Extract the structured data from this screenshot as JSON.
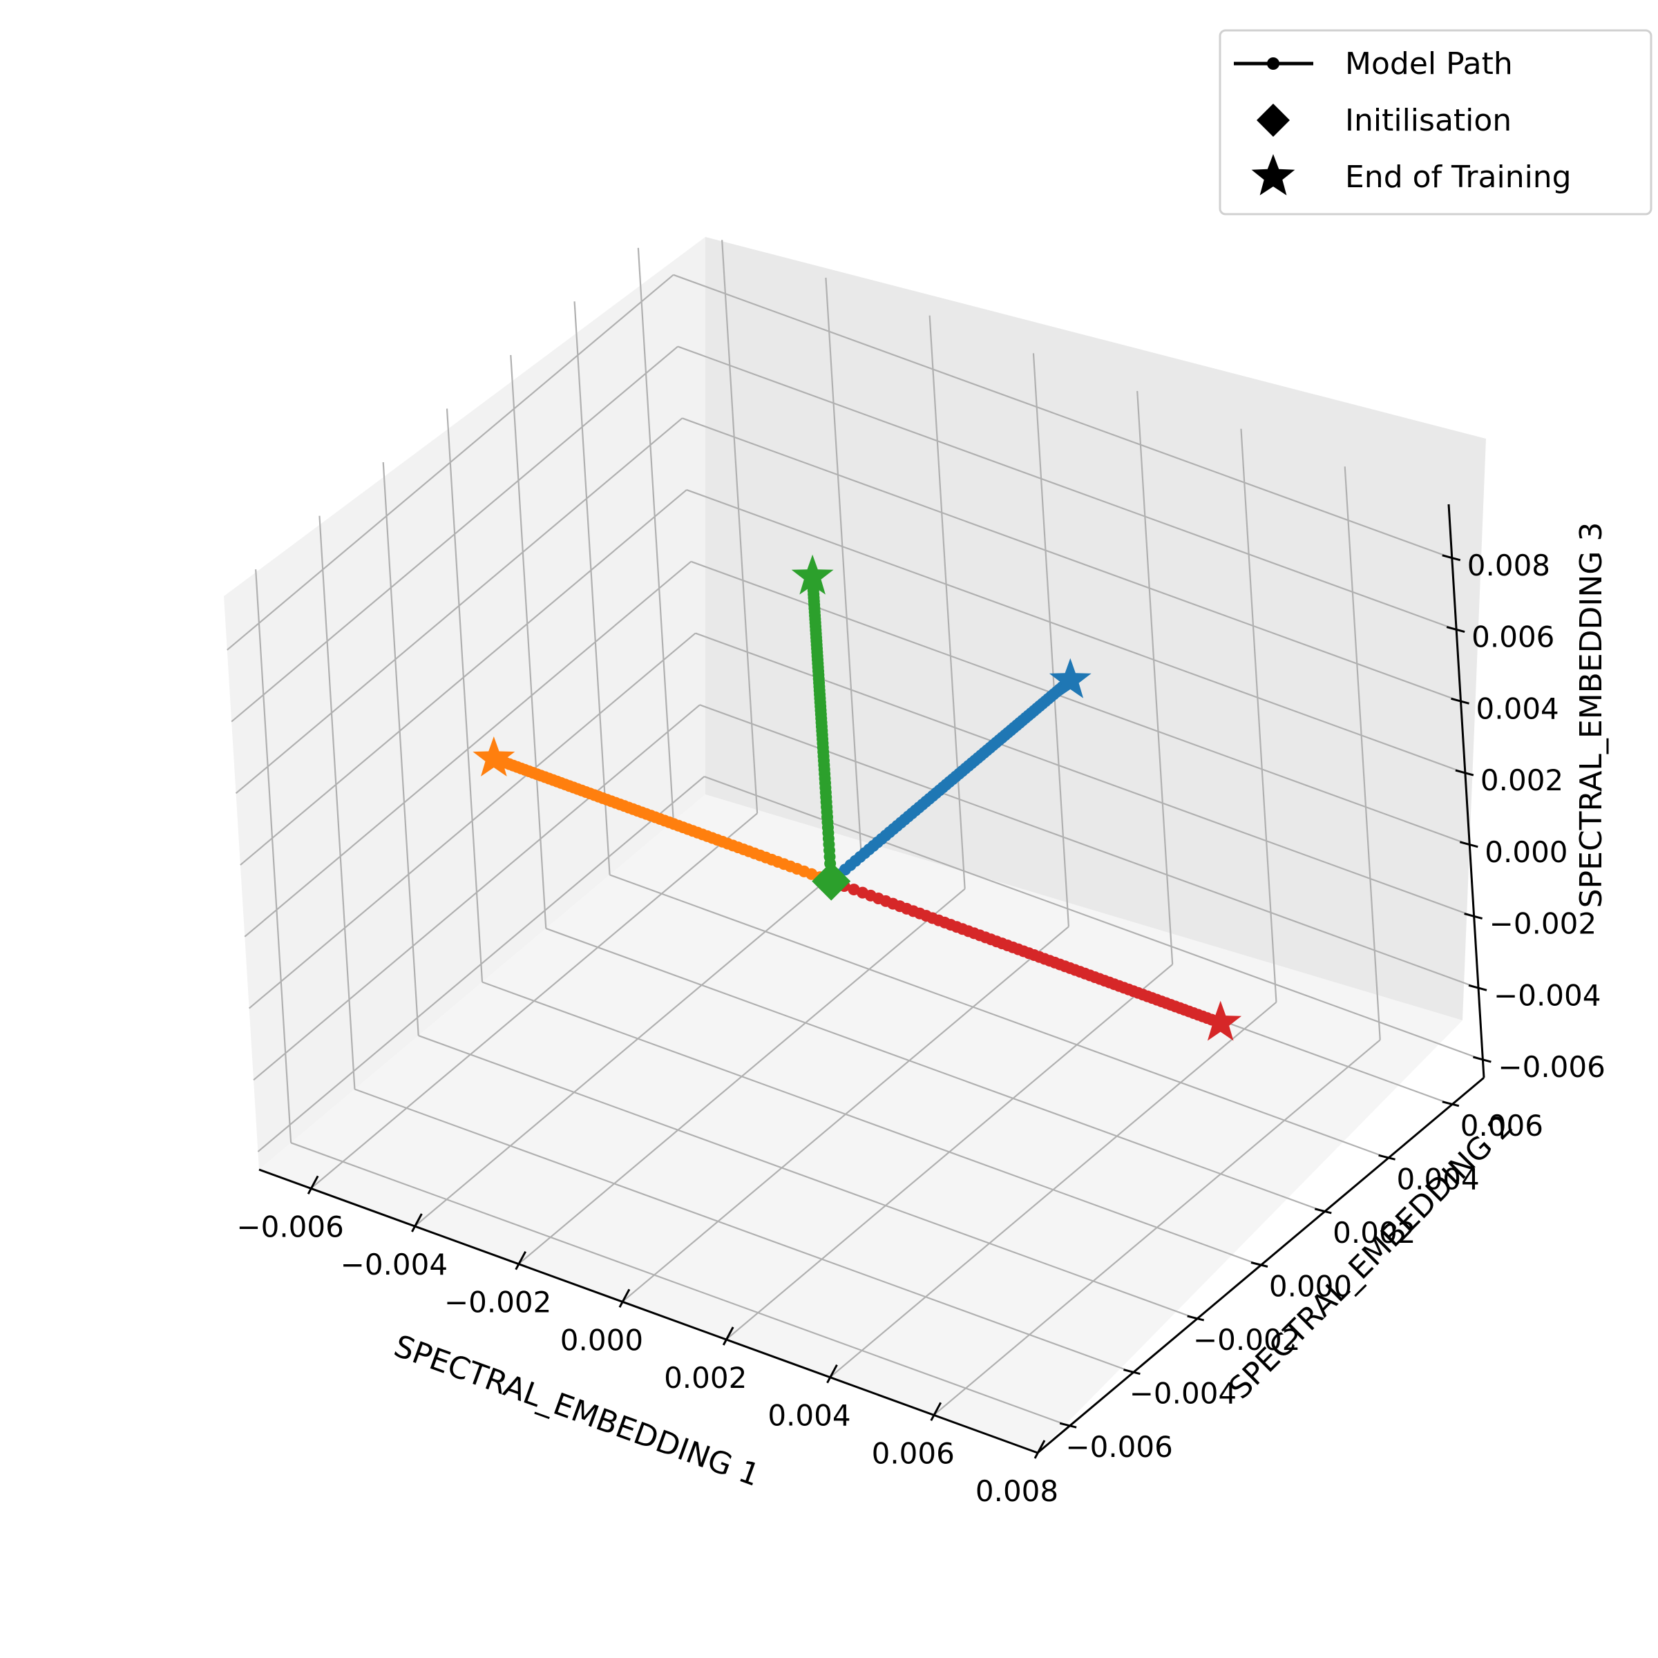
{
  "chart_data": {
    "type": "scatter",
    "projection": "3d",
    "title": "",
    "xlabel": "SPECTRAL_EMBEDDING 1",
    "ylabel": "SPECTRAL_EMBEDDING 2",
    "zlabel": "SPECTRAL_EMBEDDING 3",
    "xlim": [
      -0.007,
      0.008
    ],
    "ylim": [
      -0.007,
      0.007
    ],
    "zlim": [
      -0.0065,
      0.0095
    ],
    "xticks": [
      -0.006,
      -0.004,
      -0.002,
      0.0,
      0.002,
      0.004,
      0.006,
      0.008
    ],
    "yticks": [
      -0.006,
      -0.004,
      -0.002,
      0.0,
      0.002,
      0.004,
      0.006
    ],
    "zticks": [
      -0.006,
      -0.004,
      -0.002,
      0.0,
      0.002,
      0.004,
      0.006,
      0.008
    ],
    "xtick_labels": [
      "−0.006",
      "−0.004",
      "−0.002",
      "0.000",
      "0.002",
      "0.004",
      "0.006",
      "0.008"
    ],
    "ytick_labels": [
      "−0.006",
      "−0.004",
      "−0.002",
      "0.000",
      "0.002",
      "0.004",
      "0.006"
    ],
    "ztick_labels": [
      "−0.006",
      "−0.004",
      "−0.002",
      "0.000",
      "0.002",
      "0.004",
      "0.006",
      "0.008"
    ],
    "grid": true,
    "legend_position": "top-right",
    "legend": [
      {
        "label": "Model Path",
        "marker": "line-dot"
      },
      {
        "label": "Initilisation",
        "marker": "diamond"
      },
      {
        "label": "End of Training",
        "marker": "star"
      }
    ],
    "series": [
      {
        "color": "#1f77b4",
        "start": [
          0.0,
          0.0,
          0.0
        ],
        "end": [
          0.0,
          0.0075,
          0.0
        ]
      },
      {
        "color": "#ff7f0e",
        "start": [
          0.0,
          0.0,
          0.0
        ],
        "end": [
          -0.0065,
          0.0,
          0.0
        ]
      },
      {
        "color": "#2ca02c",
        "start": [
          0.0,
          0.0,
          0.0
        ],
        "end": [
          0.0,
          0.0,
          0.0085
        ]
      },
      {
        "color": "#d62728",
        "start": [
          0.0,
          0.0,
          0.0
        ],
        "end": [
          0.0075,
          0.0,
          0.0
        ]
      }
    ]
  }
}
